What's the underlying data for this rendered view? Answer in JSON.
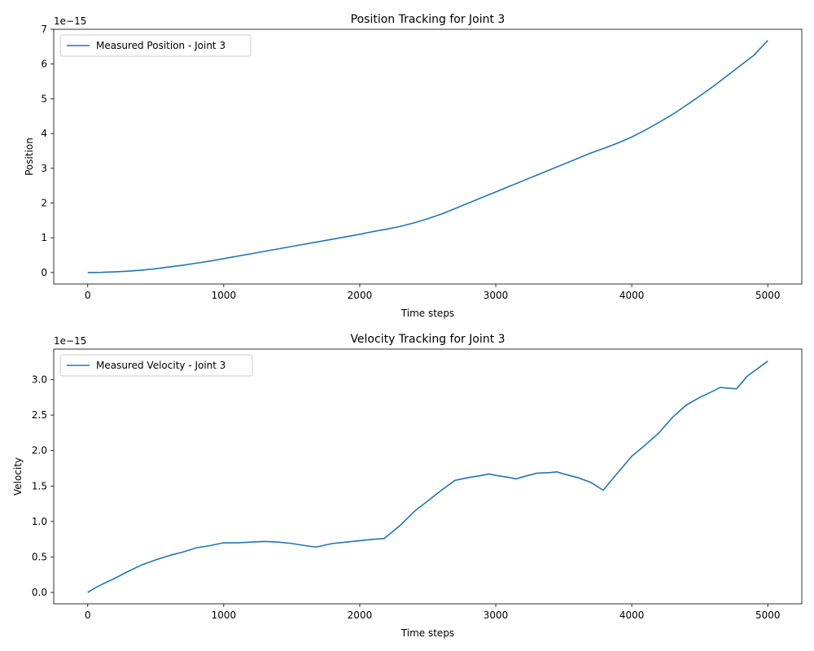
{
  "chart_data": [
    {
      "type": "line",
      "title": "Position Tracking for Joint 3",
      "xlabel": "Time steps",
      "ylabel": "Position",
      "offset_label": "1e−15",
      "xlim": [
        -250,
        5250
      ],
      "ylim": [
        -0.33,
        7.0
      ],
      "xticks": [
        0,
        1000,
        2000,
        3000,
        4000,
        5000
      ],
      "xtick_labels": [
        "0",
        "1000",
        "2000",
        "3000",
        "4000",
        "5000"
      ],
      "yticks": [
        0,
        1,
        2,
        3,
        4,
        5,
        6,
        7
      ],
      "ytick_labels": [
        "0",
        "1",
        "2",
        "3",
        "4",
        "5",
        "6",
        "7"
      ],
      "grid": false,
      "legend_position": "upper-left",
      "line_color": "#1f77b4",
      "series": [
        {
          "name": "Measured Position - Joint 3",
          "x": [
            0,
            100,
            200,
            300,
            400,
            500,
            600,
            700,
            800,
            900,
            1000,
            1100,
            1200,
            1300,
            1400,
            1500,
            1600,
            1700,
            1800,
            1900,
            2000,
            2100,
            2200,
            2300,
            2400,
            2500,
            2600,
            2700,
            2800,
            2900,
            3000,
            3100,
            3200,
            3300,
            3400,
            3500,
            3600,
            3700,
            3800,
            3900,
            4000,
            4100,
            4200,
            4300,
            4400,
            4500,
            4600,
            4700,
            4800,
            4900,
            5000
          ],
          "values": [
            0.0,
            0.005,
            0.02,
            0.04,
            0.07,
            0.11,
            0.16,
            0.21,
            0.27,
            0.33,
            0.4,
            0.47,
            0.54,
            0.61,
            0.68,
            0.75,
            0.82,
            0.89,
            0.96,
            1.03,
            1.1,
            1.18,
            1.25,
            1.33,
            1.43,
            1.55,
            1.68,
            1.84,
            2.0,
            2.16,
            2.32,
            2.48,
            2.64,
            2.8,
            2.96,
            3.12,
            3.28,
            3.44,
            3.58,
            3.73,
            3.9,
            4.1,
            4.32,
            4.55,
            4.81,
            5.08,
            5.36,
            5.66,
            5.96,
            6.26,
            6.68
          ]
        }
      ]
    },
    {
      "type": "line",
      "title": "Velocity Tracking for Joint 3",
      "xlabel": "Time steps",
      "ylabel": "Velocity",
      "offset_label": "1e−15",
      "xlim": [
        -250,
        5250
      ],
      "ylim": [
        -0.16,
        3.43
      ],
      "xticks": [
        0,
        1000,
        2000,
        3000,
        4000,
        5000
      ],
      "xtick_labels": [
        "0",
        "1000",
        "2000",
        "3000",
        "4000",
        "5000"
      ],
      "yticks": [
        0,
        0.5,
        1.0,
        1.5,
        2.0,
        2.5,
        3.0
      ],
      "ytick_labels": [
        "0.0",
        "0.5",
        "1.0",
        "1.5",
        "2.0",
        "2.5",
        "3.0"
      ],
      "grid": false,
      "legend_position": "upper-left",
      "line_color": "#1f77b4",
      "series": [
        {
          "name": "Measured Velocity - Joint 3",
          "x": [
            0,
            50,
            100,
            200,
            300,
            400,
            500,
            600,
            700,
            800,
            900,
            1000,
            1100,
            1200,
            1300,
            1400,
            1500,
            1600,
            1680,
            1800,
            1900,
            2000,
            2100,
            2180,
            2300,
            2400,
            2500,
            2600,
            2700,
            2800,
            2900,
            2950,
            3000,
            3100,
            3150,
            3200,
            3300,
            3400,
            3450,
            3500,
            3600,
            3700,
            3790,
            3850,
            4000,
            4100,
            4200,
            4300,
            4400,
            4500,
            4600,
            4650,
            4700,
            4770,
            4850,
            4950,
            5000
          ],
          "values": [
            0.0,
            0.06,
            0.11,
            0.2,
            0.3,
            0.39,
            0.46,
            0.52,
            0.57,
            0.63,
            0.66,
            0.7,
            0.7,
            0.71,
            0.72,
            0.71,
            0.69,
            0.66,
            0.64,
            0.69,
            0.71,
            0.73,
            0.75,
            0.76,
            0.95,
            1.14,
            1.29,
            1.44,
            1.58,
            1.62,
            1.65,
            1.67,
            1.65,
            1.62,
            1.6,
            1.63,
            1.68,
            1.69,
            1.7,
            1.67,
            1.62,
            1.55,
            1.44,
            1.58,
            1.92,
            2.08,
            2.25,
            2.47,
            2.64,
            2.75,
            2.84,
            2.89,
            2.88,
            2.87,
            3.05,
            3.19,
            3.26
          ]
        }
      ]
    }
  ]
}
